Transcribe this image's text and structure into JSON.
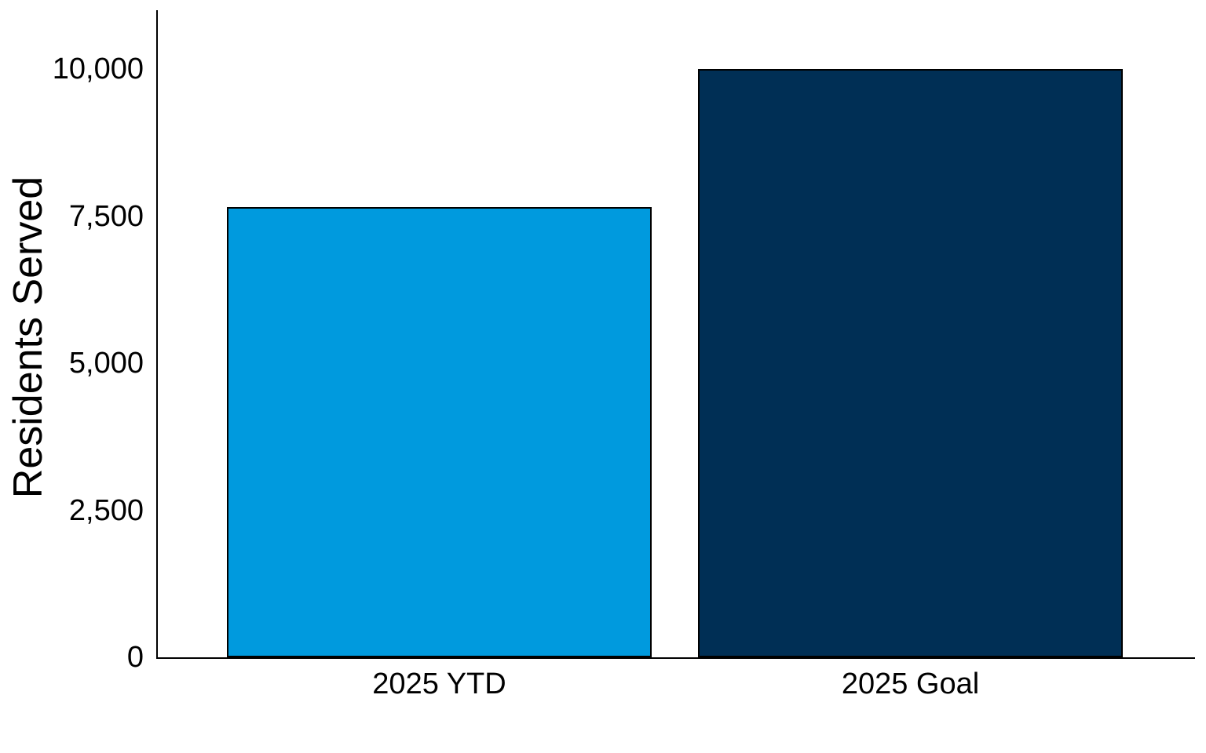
{
  "chart_data": {
    "type": "bar",
    "title": "",
    "xlabel": "",
    "ylabel": "Residents Served",
    "categories": [
      "2025 YTD",
      "2025 Goal"
    ],
    "values": [
      7650,
      10000
    ],
    "series_colors": [
      "#009ADE",
      "#002F55"
    ],
    "bar_border_color": "#000000",
    "ylim": [
      0,
      11000
    ],
    "yticks": [
      {
        "value": 0,
        "label": "0"
      },
      {
        "value": 2500,
        "label": "2,500"
      },
      {
        "value": 5000,
        "label": "5,000"
      },
      {
        "value": 7500,
        "label": "7,500"
      },
      {
        "value": 10000,
        "label": "10,000"
      }
    ],
    "grid": false,
    "legend": false,
    "background": "#FFFFFF",
    "axis_color": "#000000",
    "text_color": "#000000"
  }
}
